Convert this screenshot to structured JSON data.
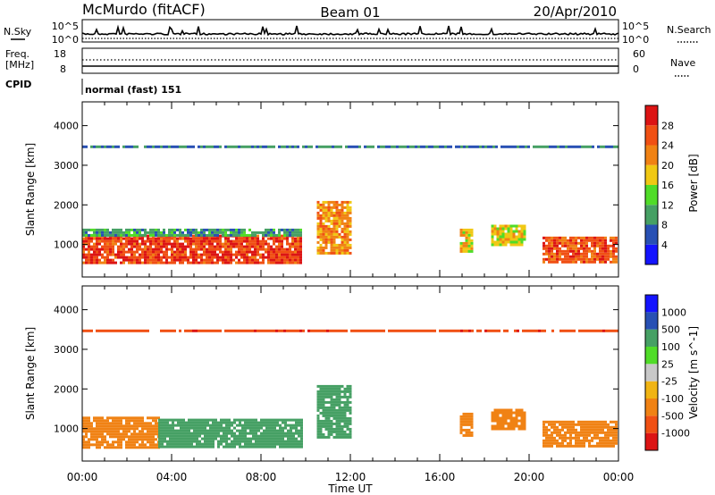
{
  "header": {
    "station": "McMurdo (fitACF)",
    "beam": "Beam 01",
    "date": "20/Apr/2010"
  },
  "noise_panel": {
    "left_label": "N.Sky",
    "right_label": "N.Search",
    "left_ticks": [
      "10^5",
      "10^0"
    ],
    "right_ticks": [
      "10^5",
      "10^0"
    ]
  },
  "freq_panel": {
    "left_label_1": "Freq.",
    "left_label_2": "[MHz]",
    "right_label": "Nave",
    "left_ticks": [
      "18",
      "8"
    ],
    "right_ticks": [
      "60",
      "0"
    ]
  },
  "cpid_panel": {
    "label": "CPID",
    "text": "normal (fast) 151"
  },
  "x_axis": {
    "title": "Time UT",
    "tick_labels": [
      "00:00",
      "04:00",
      "08:00",
      "12:00",
      "16:00",
      "20:00",
      "00:00"
    ],
    "range_hours": [
      0,
      24
    ]
  },
  "colors": {
    "power": [
      "#1414ff",
      "#2850b4",
      "#46a064",
      "#50dc28",
      "#f0c814",
      "#f08214",
      "#f05014",
      "#dc1414"
    ],
    "velocity": [
      "#dc1414",
      "#f05014",
      "#f08214",
      "#f0b414",
      "#c8c8c8",
      "#50dc28",
      "#46a064",
      "#2850b4",
      "#1414ff"
    ]
  },
  "chart_data": [
    {
      "type": "heatmap",
      "name": "power",
      "ylabel": "Slant Range [km]",
      "ylim": [
        180,
        4600
      ],
      "y_ticks": [
        1000,
        2000,
        3000,
        4000
      ],
      "y_tick_labels": [
        "1000",
        "2000",
        "3000",
        "4000"
      ],
      "x_range_hours": [
        0,
        24
      ],
      "colorbar": {
        "title": "Power [dB]",
        "range": [
          0,
          32
        ],
        "tick_values": [
          4,
          8,
          12,
          16,
          20,
          24,
          28
        ],
        "tick_labels": [
          "4",
          "8",
          "12",
          "16",
          "20",
          "24",
          "28"
        ]
      },
      "regions": [
        {
          "t0": 0.0,
          "t1": 9.8,
          "r0": 550,
          "r1": 1250,
          "power": 27
        },
        {
          "t0": 0.0,
          "t1": 9.8,
          "r0": 1250,
          "r1": 1400,
          "power": 10
        },
        {
          "t0": 10.5,
          "t1": 12.0,
          "r0": 800,
          "r1": 2100,
          "power": 22
        },
        {
          "t0": 16.9,
          "t1": 17.5,
          "r0": 850,
          "r1": 1400,
          "power": 18
        },
        {
          "t0": 18.3,
          "t1": 19.8,
          "r0": 1000,
          "r1": 1500,
          "power": 17
        },
        {
          "t0": 20.6,
          "t1": 23.9,
          "r0": 550,
          "r1": 1200,
          "power": 26
        },
        {
          "t0": 0.0,
          "t1": 24.0,
          "r0": 3450,
          "r1": 3500,
          "power": 8
        }
      ]
    },
    {
      "type": "heatmap",
      "name": "velocity",
      "ylabel": "Slant Range [km]",
      "ylim": [
        180,
        4600
      ],
      "y_ticks": [
        1000,
        2000,
        3000,
        4000
      ],
      "y_tick_labels": [
        "1000",
        "2000",
        "3000",
        "4000"
      ],
      "x_range_hours": [
        0,
        24
      ],
      "colorbar": {
        "title": "Velocity [m s^-1]",
        "tick_labels": [
          "1000",
          "500",
          "100",
          "25",
          "-25",
          "-100",
          "-500",
          "-1000"
        ]
      },
      "regions": [
        {
          "t0": 0.0,
          "t1": 3.4,
          "r0": 550,
          "r1": 1300,
          "velocity": -150
        },
        {
          "t0": 3.4,
          "t1": 9.8,
          "r0": 550,
          "r1": 1250,
          "velocity": 300
        },
        {
          "t0": 10.5,
          "t1": 12.0,
          "r0": 800,
          "r1": 2100,
          "velocity": 200
        },
        {
          "t0": 16.9,
          "t1": 17.5,
          "r0": 850,
          "r1": 1400,
          "velocity": -300
        },
        {
          "t0": 18.3,
          "t1": 19.8,
          "r0": 1000,
          "r1": 1500,
          "velocity": -300
        },
        {
          "t0": 20.6,
          "t1": 23.9,
          "r0": 550,
          "r1": 1200,
          "velocity": -300
        },
        {
          "t0": 0.0,
          "t1": 24.0,
          "r0": 3450,
          "r1": 3500,
          "velocity": -800
        }
      ]
    }
  ]
}
